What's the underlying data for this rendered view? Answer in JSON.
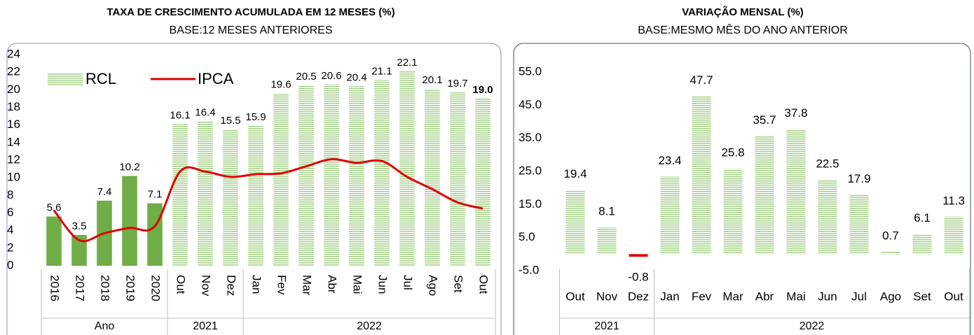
{
  "chart_data": [
    {
      "type": "combo",
      "title": "TAXA DE CRESCIMENTO ACUMULADA EM 12 MESES (%)",
      "subtitle": "BASE:12 MESES ANTERIORES",
      "categories": [
        "2016",
        "2017",
        "2018",
        "2019",
        "2020",
        "Out",
        "Nov",
        "Dez",
        "Jan",
        "Fev",
        "Mar",
        "Abr",
        "Mai",
        "Jun",
        "Jul",
        "Ago",
        "Set",
        "Out"
      ],
      "groups": [
        {
          "label": "Ano",
          "span": 5
        },
        {
          "label": "2021",
          "span": 3
        },
        {
          "label": "2022",
          "span": 10
        }
      ],
      "series": [
        {
          "name": "RCL",
          "kind": "bar",
          "color": "#70ad47",
          "stripe_color": "#a9d18e",
          "fills": [
            "solid",
            "solid",
            "solid",
            "solid",
            "solid",
            "striped",
            "striped",
            "striped",
            "striped",
            "striped",
            "striped",
            "striped",
            "striped",
            "striped",
            "striped",
            "striped",
            "striped",
            "striped"
          ],
          "values": [
            5.6,
            3.5,
            7.4,
            10.2,
            7.1,
            16.1,
            16.4,
            15.5,
            15.9,
            19.6,
            20.5,
            20.6,
            20.4,
            21.1,
            22.1,
            20.1,
            19.7,
            19.0
          ],
          "value_labels": [
            "5.6",
            "3.5",
            "7.4",
            "10.2",
            "7.1",
            "16.1",
            "16.4",
            "15.5",
            "15.9",
            "19.6",
            "20.5",
            "20.6",
            "20.4",
            "21.1",
            "22.1",
            "20.1",
            "19.7",
            "19.0"
          ]
        },
        {
          "name": "IPCA",
          "kind": "line",
          "color": "#e00000",
          "values": [
            6.3,
            2.9,
            3.7,
            4.3,
            4.5,
            10.7,
            10.7,
            10.1,
            10.4,
            10.5,
            11.3,
            12.1,
            11.7,
            11.9,
            10.1,
            8.7,
            7.2,
            6.5
          ]
        }
      ],
      "ylim": [
        0,
        24
      ],
      "yticks": [
        0,
        2,
        4,
        6,
        8,
        10,
        12,
        14,
        16,
        18,
        20,
        22,
        24
      ],
      "legend": "top-left"
    },
    {
      "type": "bar",
      "title": "VARIAÇÃO MENSAL (%)",
      "subtitle": "BASE:MESMO MÊS DO ANO ANTERIOR",
      "categories": [
        "Out",
        "Nov",
        "Dez",
        "Jan",
        "Fev",
        "Mar",
        "Abr",
        "Mai",
        "Jun",
        "Jul",
        "Ago",
        "Set",
        "Out"
      ],
      "groups": [
        {
          "label": "2021",
          "span": 3
        },
        {
          "label": "2022",
          "span": 10
        }
      ],
      "values": [
        19.4,
        8.1,
        -0.8,
        23.4,
        47.7,
        25.8,
        35.7,
        37.8,
        22.5,
        17.9,
        0.7,
        6.1,
        11.3
      ],
      "color": "#a9d18e",
      "negative_color": "#e00000",
      "ylim": [
        -5,
        57
      ],
      "yticks": [
        {
          "value": -5,
          "label": "-5.0"
        },
        {
          "value": 5,
          "label": "5.0"
        },
        {
          "value": 15,
          "label": "15.0"
        },
        {
          "value": 25,
          "label": "25.0"
        },
        {
          "value": 35,
          "label": "35.0"
        },
        {
          "value": 45,
          "label": "45.0"
        },
        {
          "value": 55,
          "label": "55.0"
        }
      ]
    }
  ]
}
